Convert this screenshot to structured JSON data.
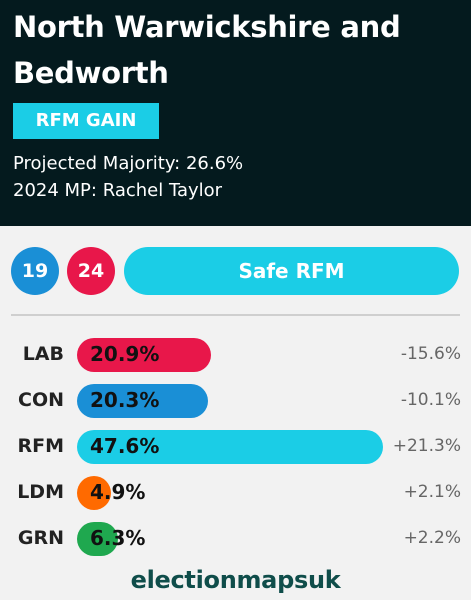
{
  "header": {
    "title": "North Warwickshire and Bedworth",
    "gain_label": "RFM GAIN",
    "majority": "Projected Majority: 26.6%",
    "mp": "2024 MP: Rachel Taylor"
  },
  "badges": [
    {
      "value": "19",
      "color": "#1a8fd6"
    },
    {
      "value": "24",
      "color": "#e8174a"
    }
  ],
  "rating": {
    "label": "Safe RFM",
    "color": "#1bcde6"
  },
  "results": [
    {
      "party": "LAB",
      "share": 20.9,
      "share_label": "20.9%",
      "change": "-15.6%",
      "color": "#e8174a"
    },
    {
      "party": "CON",
      "share": 20.3,
      "share_label": "20.3%",
      "change": "-10.1%",
      "color": "#1a8fd6"
    },
    {
      "party": "RFM",
      "share": 47.6,
      "share_label": "47.6%",
      "change": "+21.3%",
      "color": "#1bcde6"
    },
    {
      "party": "LDM",
      "share": 4.9,
      "share_label": "4.9%",
      "change": "+2.1%",
      "color": "#ff6a00"
    },
    {
      "party": "GRN",
      "share": 6.3,
      "share_label": "6.3%",
      "change": "+2.2%",
      "color": "#1fa84f"
    }
  ],
  "brand": "electionmapsuk",
  "colors": {
    "header_bg": "#041a1e",
    "gain_bg": "#1bcde6"
  }
}
